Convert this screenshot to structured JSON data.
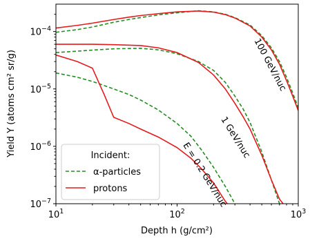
{
  "chart_data": {
    "type": "line",
    "title": "",
    "xlabel": "Depth h (g/cm²)",
    "ylabel": "Yield Y (atoms cm² sr/g)",
    "xscale": "log",
    "yscale": "log",
    "xlim": [
      10,
      1000
    ],
    "ylim": [
      1e-07,
      0.0003
    ],
    "grid": false,
    "x_ticks": [
      {
        "value": 10,
        "base": "10",
        "exp": "1"
      },
      {
        "value": 100,
        "base": "10",
        "exp": "2"
      },
      {
        "value": 1000,
        "base": "10",
        "exp": "3"
      }
    ],
    "y_ticks": [
      {
        "value": 1e-07,
        "base": "10",
        "exp": "−7"
      },
      {
        "value": 1e-06,
        "base": "10",
        "exp": "−6"
      },
      {
        "value": 1e-05,
        "base": "10",
        "exp": "−5"
      },
      {
        "value": 0.0001,
        "base": "10",
        "exp": "−4"
      }
    ],
    "legend": {
      "title": "Incident:",
      "placement": "lower-left",
      "entries": [
        {
          "label": "α-particles",
          "color": "#228B22",
          "style": "dashed"
        },
        {
          "label": "protons",
          "color": "#e41a1c",
          "style": "solid"
        }
      ]
    },
    "annotations": [
      {
        "text": "100 GeV/nuc",
        "x": 560,
        "y": 2.5e-05,
        "rotation": 62
      },
      {
        "text": "1 GeV/nuc",
        "x": 290,
        "y": 1.35e-06,
        "rotation": 58
      },
      {
        "text": "E = 0.2 GeV/nuc",
        "x": 162,
        "y": 3e-07,
        "rotation": 58
      }
    ],
    "series": [
      {
        "energy": "100 GeV/nuc",
        "particle": "alpha",
        "color": "#228B22",
        "style": "dashed",
        "points": [
          [
            10,
            9.7e-05
          ],
          [
            15,
            0.000108
          ],
          [
            20,
            0.00012
          ],
          [
            30,
            0.000145
          ],
          [
            40,
            0.000162
          ],
          [
            50,
            0.000175
          ],
          [
            70,
            0.000195
          ],
          [
            100,
            0.000212
          ],
          [
            150,
            0.00023
          ],
          [
            200,
            0.00022
          ],
          [
            250,
            0.0002
          ],
          [
            300,
            0.000175
          ],
          [
            400,
            0.00013
          ],
          [
            500,
            8.5e-05
          ],
          [
            600,
            5.2e-05
          ],
          [
            700,
            3e-05
          ],
          [
            800,
            1.6e-05
          ],
          [
            900,
            8.5e-06
          ],
          [
            1000,
            4.7e-06
          ]
        ]
      },
      {
        "energy": "100 GeV/nuc",
        "particle": "proton",
        "color": "#e41a1c",
        "style": "solid",
        "points": [
          [
            10,
            0.000115
          ],
          [
            15,
            0.000128
          ],
          [
            20,
            0.00014
          ],
          [
            30,
            0.000162
          ],
          [
            40,
            0.000178
          ],
          [
            50,
            0.00019
          ],
          [
            70,
            0.000205
          ],
          [
            100,
            0.00022
          ],
          [
            150,
            0.000228
          ],
          [
            200,
            0.000218
          ],
          [
            250,
            0.000197
          ],
          [
            300,
            0.000172
          ],
          [
            400,
            0.000125
          ],
          [
            500,
            8e-05
          ],
          [
            600,
            4.8e-05
          ],
          [
            700,
            2.7e-05
          ],
          [
            800,
            1.4e-05
          ],
          [
            900,
            7.5e-06
          ],
          [
            1000,
            4.2e-06
          ]
        ]
      },
      {
        "energy": "1 GeV/nuc",
        "particle": "alpha",
        "color": "#228B22",
        "style": "dashed",
        "points": [
          [
            10,
            4.3e-05
          ],
          [
            15,
            4.55e-05
          ],
          [
            20,
            4.75e-05
          ],
          [
            30,
            5e-05
          ],
          [
            50,
            5.1e-05
          ],
          [
            70,
            4.8e-05
          ],
          [
            100,
            4.1e-05
          ],
          [
            150,
            3e-05
          ],
          [
            200,
            2.1e-05
          ],
          [
            250,
            1.3e-05
          ],
          [
            300,
            7.5e-06
          ],
          [
            350,
            4.5e-06
          ],
          [
            400,
            2.6e-06
          ],
          [
            500,
            8e-07
          ],
          [
            600,
            2.6e-07
          ],
          [
            700,
            1e-07
          ]
        ]
      },
      {
        "energy": "1 GeV/nuc",
        "particle": "proton",
        "color": "#e41a1c",
        "style": "solid",
        "points": [
          [
            10,
            6e-05
          ],
          [
            15,
            6e-05
          ],
          [
            20,
            6e-05
          ],
          [
            30,
            5.9e-05
          ],
          [
            50,
            5.7e-05
          ],
          [
            70,
            5.2e-05
          ],
          [
            100,
            4.3e-05
          ],
          [
            150,
            2.9e-05
          ],
          [
            200,
            1.75e-05
          ],
          [
            250,
            1e-05
          ],
          [
            300,
            5.6e-06
          ],
          [
            350,
            3.3e-06
          ],
          [
            400,
            2e-06
          ],
          [
            500,
            7e-07
          ],
          [
            600,
            2.6e-07
          ],
          [
            700,
            1.2e-07
          ],
          [
            750,
            1e-07
          ]
        ]
      },
      {
        "energy": "0.2 GeV/nuc",
        "particle": "alpha",
        "color": "#228B22",
        "style": "dashed",
        "points": [
          [
            10,
            1.9e-05
          ],
          [
            15,
            1.6e-05
          ],
          [
            20,
            1.35e-05
          ],
          [
            30,
            1e-05
          ],
          [
            40,
            8e-06
          ],
          [
            50,
            6.4e-06
          ],
          [
            70,
            4.3e-06
          ],
          [
            100,
            2.5e-06
          ],
          [
            130,
            1.5e-06
          ],
          [
            160,
            8.5e-07
          ],
          [
            200,
            4.3e-07
          ],
          [
            250,
            2e-07
          ],
          [
            300,
            1e-07
          ]
        ]
      },
      {
        "energy": "0.2 GeV/nuc",
        "particle": "proton",
        "color": "#e41a1c",
        "style": "solid",
        "points": [
          [
            10,
            3.9e-05
          ],
          [
            15,
            3e-05
          ],
          [
            20,
            2.3e-05
          ],
          [
            25,
            8e-06
          ],
          [
            30,
            3.2e-06
          ],
          [
            40,
            2.5e-06
          ],
          [
            50,
            2e-06
          ],
          [
            70,
            1.45e-06
          ],
          [
            100,
            9.5e-07
          ],
          [
            130,
            6.2e-07
          ],
          [
            160,
            4e-07
          ],
          [
            200,
            2.3e-07
          ],
          [
            250,
            1.1e-07
          ],
          [
            260,
            1e-07
          ]
        ]
      }
    ]
  }
}
